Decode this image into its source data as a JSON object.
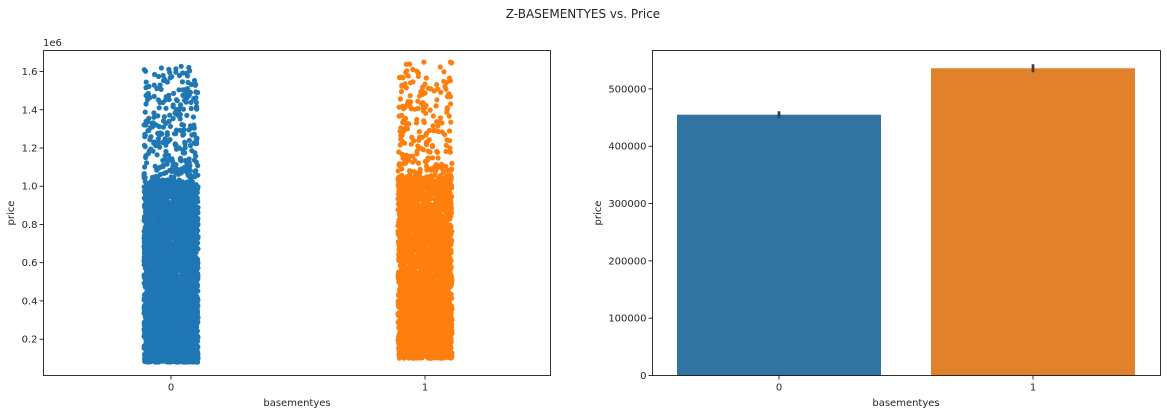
{
  "suptitle": "Z-BASEMENTYES vs. Price",
  "chart_data": [
    {
      "type": "scatter",
      "subtype": "strip",
      "xlabel": "basementyes",
      "ylabel": "price",
      "y_offset_label": "1e6",
      "categories": [
        "0",
        "1"
      ],
      "y_ticks": [
        0.2,
        0.4,
        0.6,
        0.8,
        1.0,
        1.2,
        1.4,
        1.6
      ],
      "y_tick_labels": [
        "0.2",
        "0.4",
        "0.6",
        "0.8",
        "1.0",
        "1.2",
        "1.4",
        "1.6"
      ],
      "ylim": [
        0.01,
        1.71
      ],
      "series": [
        {
          "category": "0",
          "color": "#1f77b4",
          "y_range": [
            0.08,
            1.63
          ],
          "dense_upper": 1.02,
          "approx_points": 4000
        },
        {
          "category": "1",
          "color": "#ff7f0e",
          "y_range": [
            0.1,
            1.65
          ],
          "dense_upper": 1.05,
          "approx_points": 3000
        }
      ],
      "grid": false
    },
    {
      "type": "bar",
      "xlabel": "basementyes",
      "ylabel": "price",
      "categories": [
        "0",
        "1"
      ],
      "values": [
        455000,
        536000
      ],
      "error": [
        [
          449000,
          461000
        ],
        [
          529000,
          543000
        ]
      ],
      "colors": [
        "#3274a1",
        "#e1812c"
      ],
      "y_ticks": [
        0,
        100000,
        200000,
        300000,
        400000,
        500000
      ],
      "y_tick_labels": [
        "0",
        "100000",
        "200000",
        "300000",
        "400000",
        "500000"
      ],
      "ylim": [
        0,
        567000
      ],
      "grid": false
    }
  ]
}
